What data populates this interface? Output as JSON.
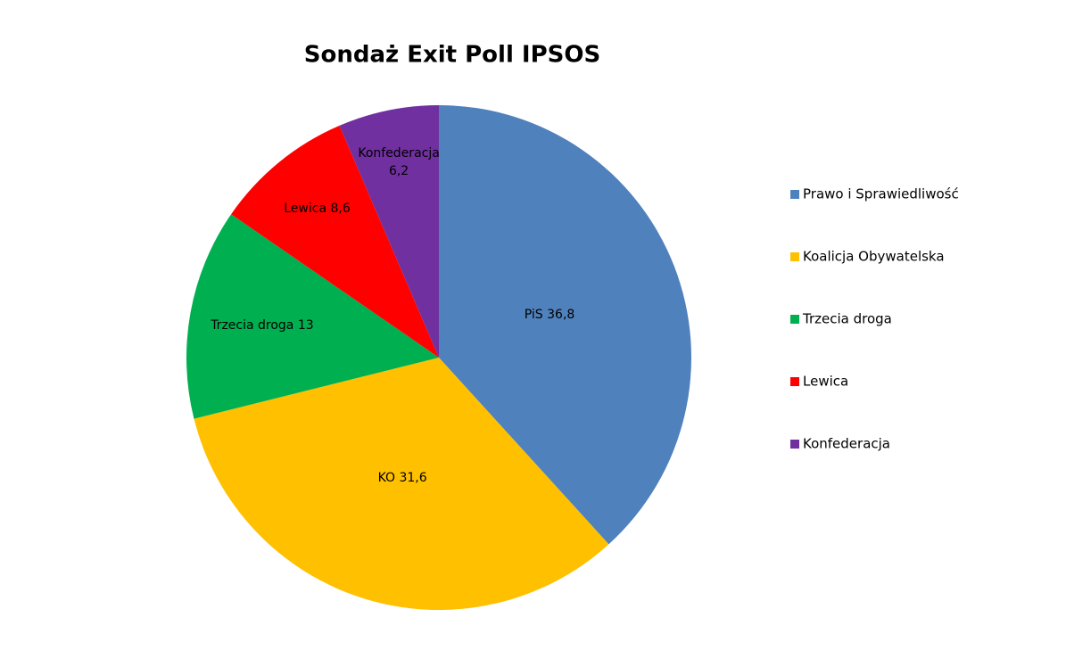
{
  "chart_data": {
    "type": "pie",
    "title": "Sondaż Exit Poll IPSOS",
    "categories": [
      "Prawo i Sprawiedliwość",
      "Koalicja Obywatelska",
      "Trzecia droga",
      "Lewica",
      "Konfederacja"
    ],
    "values": [
      36.8,
      31.6,
      13,
      8.6,
      6.2
    ],
    "value_labels": [
      "PiS 36,8",
      "KO 31,6",
      "Trzecia droga 13",
      "Lewica 8,6",
      "Konfederacja 6,2"
    ],
    "colors": [
      "#4f81bd",
      "#ffc000",
      "#00b050",
      "#ff0000",
      "#7030a0"
    ],
    "legend": "right"
  }
}
